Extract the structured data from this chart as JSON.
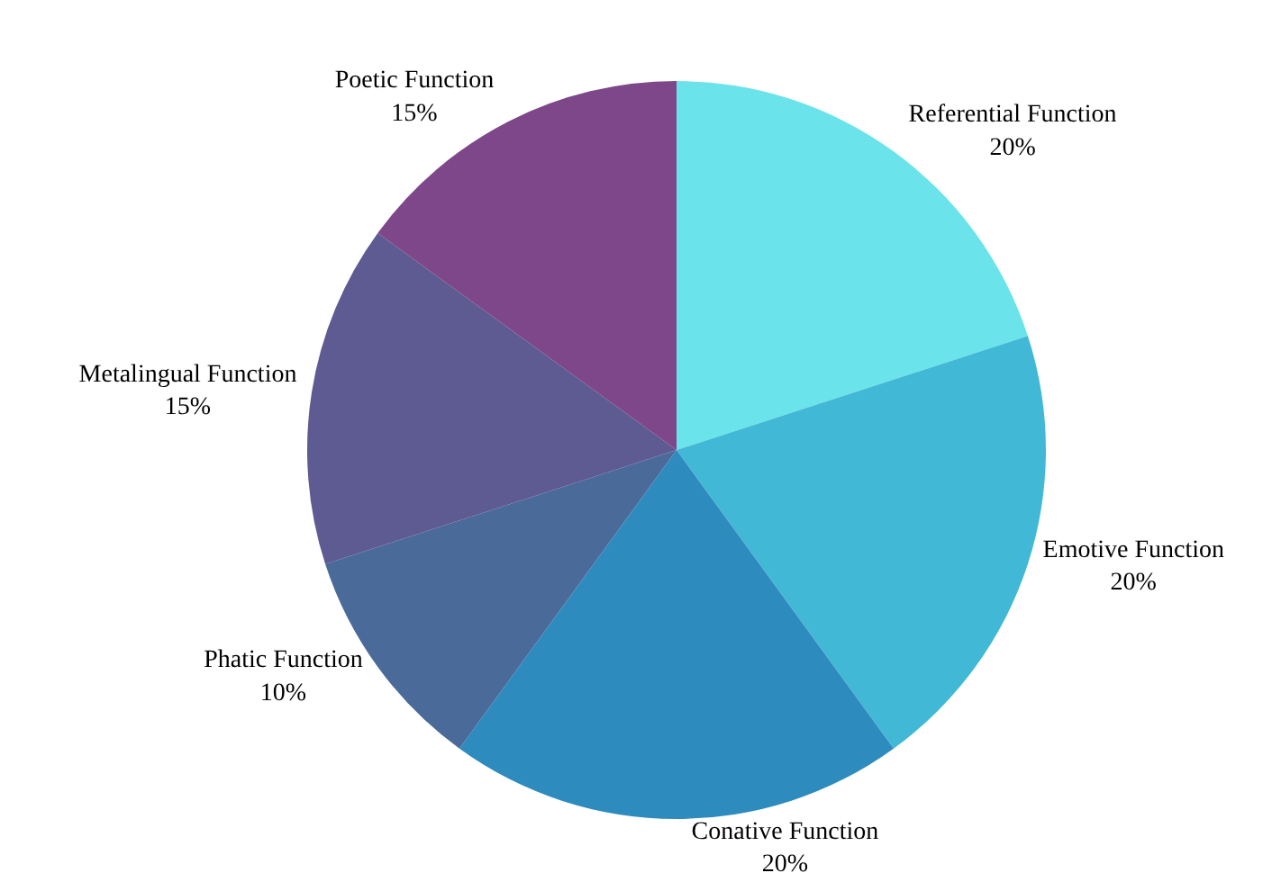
{
  "chart_data": {
    "type": "pie",
    "categories": [
      "Referential Function",
      "Emotive Function",
      "Conative Function",
      "Phatic Function",
      "Metalingual Function",
      "Poetic Function"
    ],
    "values": [
      20,
      20,
      20,
      10,
      15,
      15
    ],
    "value_labels": [
      "20%",
      "20%",
      "20%",
      "10%",
      "15%",
      "15%"
    ],
    "colors": [
      "#6ae3ea",
      "#41b8d5",
      "#2e8bbd",
      "#4a6a9a",
      "#5e5a92",
      "#7d4789"
    ],
    "legend": false
  }
}
